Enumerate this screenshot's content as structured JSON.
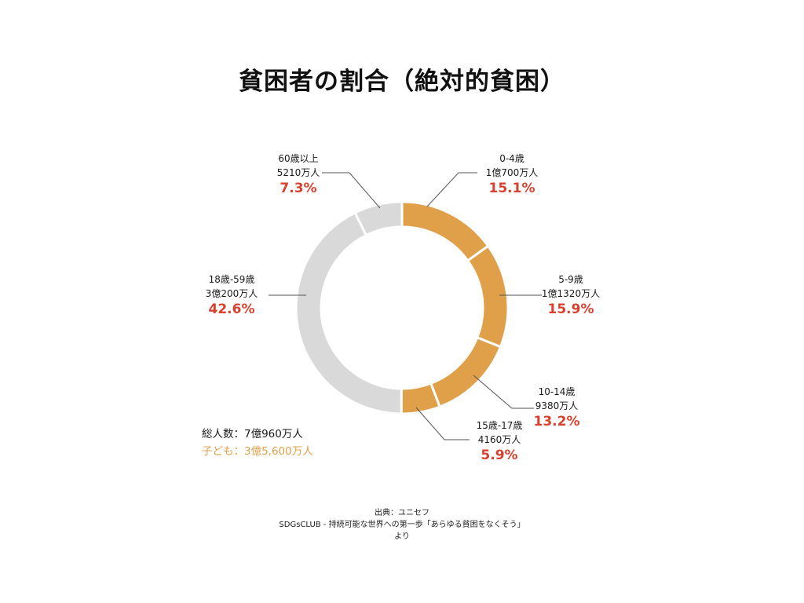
{
  "chart_data": {
    "type": "pie",
    "title": "貧困者の割合（絶対的貧困）",
    "slices": [
      {
        "label": "0-4歳",
        "count": "1億700万人",
        "percent": "15.1%",
        "value": 15.1,
        "color": "#e0a04a"
      },
      {
        "label": "5-9歳",
        "count": "1億1320万人",
        "percent": "15.9%",
        "value": 15.9,
        "color": "#e0a04a"
      },
      {
        "label": "10-14歳",
        "count": "9380万人",
        "percent": "13.2%",
        "value": 13.2,
        "color": "#e0a04a"
      },
      {
        "label": "15歳-17歳",
        "count": "4160万人",
        "percent": "5.9%",
        "value": 5.9,
        "color": "#e0a04a"
      },
      {
        "label": "18歳-59歳",
        "count": "3億200万人",
        "percent": "42.6%",
        "value": 42.6,
        "color": "#d9d9d9"
      },
      {
        "label": "60歳以上",
        "count": "5210万人",
        "percent": "7.3%",
        "value": 7.3,
        "color": "#d9d9d9"
      }
    ]
  },
  "totals": {
    "total": "総人数：7億960万人",
    "children": "子ども：3億5,600万人"
  },
  "source": {
    "line1": "出典：ユニセフ",
    "line2": "SDGsCLUB - 持続可能な世界への第一歩「あらゆる貧困をなくそう」",
    "line3": "より"
  },
  "colors": {
    "child": "#e0a04a",
    "adult": "#d9d9d9",
    "percent_text": "#d9412f",
    "leader_line": "#555555"
  }
}
